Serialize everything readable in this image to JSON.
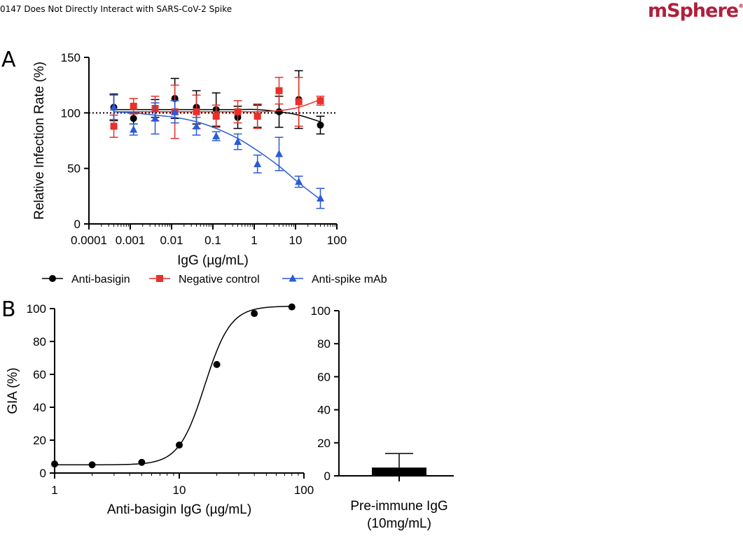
{
  "header": {
    "title": "0147 Does Not Directly Interact with SARS-CoV-2 Spike",
    "logo": "mSphere",
    "logo_mark": "®"
  },
  "panels": {
    "a": "A",
    "b": "B"
  },
  "chart_data": [
    {
      "id": "panel-a",
      "type": "scatter",
      "xlabel": "IgG (µg/mL)",
      "ylabel": "Relative Infection Rate (%)",
      "xscale": "log",
      "xlim": [
        0.0001,
        100
      ],
      "ylim": [
        0,
        150
      ],
      "xticks": [
        "0.0001",
        "0.001",
        "0.01",
        "0.1",
        "1",
        "10",
        "100"
      ],
      "xtick_values": [
        0.0001,
        0.001,
        0.01,
        0.1,
        1,
        10,
        100
      ],
      "yticks": [
        0,
        50,
        100,
        150
      ],
      "reference_line": 100,
      "legend_position": "bottom",
      "series": [
        {
          "name": "Anti-basigin",
          "color": "#000000",
          "marker": "circle",
          "x": [
            0.0004,
            0.0012,
            0.004,
            0.012,
            0.04,
            0.12,
            0.4,
            1.2,
            4,
            12,
            40
          ],
          "y": [
            105,
            95,
            104,
            113,
            105,
            103,
            96,
            97,
            101,
            112,
            89
          ],
          "err": [
            12,
            5,
            8,
            18,
            15,
            15,
            10,
            10,
            14,
            26,
            8
          ],
          "fit": [
            103,
            103,
            103,
            103,
            103,
            103,
            103,
            103,
            101,
            98,
            92
          ]
        },
        {
          "name": "Negative control",
          "color": "#e8312a",
          "marker": "square",
          "x": [
            0.0004,
            0.0012,
            0.004,
            0.012,
            0.04,
            0.12,
            0.4,
            1.2,
            4,
            12,
            40
          ],
          "y": [
            88,
            106,
            104,
            101,
            101,
            97,
            101,
            97,
            120,
            110,
            111
          ],
          "err": [
            10,
            7,
            11,
            24,
            15,
            10,
            10,
            11,
            12,
            22,
            4
          ],
          "fit": [
            101,
            101,
            101,
            101,
            101,
            101,
            101,
            101,
            102,
            105,
            112
          ]
        },
        {
          "name": "Anti-spike mAb",
          "color": "#2a5bd7",
          "marker": "triangle",
          "x": [
            0.0004,
            0.0012,
            0.004,
            0.012,
            0.04,
            0.12,
            0.4,
            1.2,
            4,
            12,
            40
          ],
          "y": [
            105,
            85,
            95,
            101,
            88,
            79,
            74,
            54,
            63,
            38,
            23
          ],
          "err": [
            11,
            5,
            14,
            10,
            8,
            4,
            7,
            8,
            15,
            5,
            9
          ],
          "fit": [
            101,
            100,
            98,
            96,
            92,
            86,
            77,
            66,
            52,
            37,
            22
          ]
        }
      ]
    },
    {
      "id": "panel-b-left",
      "type": "scatter",
      "xlabel": "Anti-basigin IgG (µg/mL)",
      "ylabel": "GIA (%)",
      "xscale": "log",
      "xlim": [
        1,
        100
      ],
      "ylim": [
        0,
        100
      ],
      "xticks": [
        "1",
        "10",
        "100"
      ],
      "xtick_values": [
        1,
        10,
        100
      ],
      "yticks": [
        0,
        20,
        40,
        60,
        80,
        100
      ],
      "series": [
        {
          "name": "",
          "color": "#000000",
          "marker": "circle",
          "x": [
            1,
            2,
            5,
            10,
            20,
            40,
            80
          ],
          "y": [
            5.5,
            5,
            6.5,
            17,
            66,
            97,
            101
          ]
        }
      ]
    },
    {
      "id": "panel-b-right",
      "type": "bar",
      "categories": [
        "Pre-immune IgG\n(10mg/mL)"
      ],
      "category_lines": [
        "Pre-immune IgG",
        "(10mg/mL)"
      ],
      "values": [
        5
      ],
      "err": [
        8.5
      ],
      "ylim": [
        0,
        100
      ],
      "yticks": [
        0,
        20,
        40,
        60,
        80,
        100
      ],
      "color": "#000000"
    }
  ]
}
